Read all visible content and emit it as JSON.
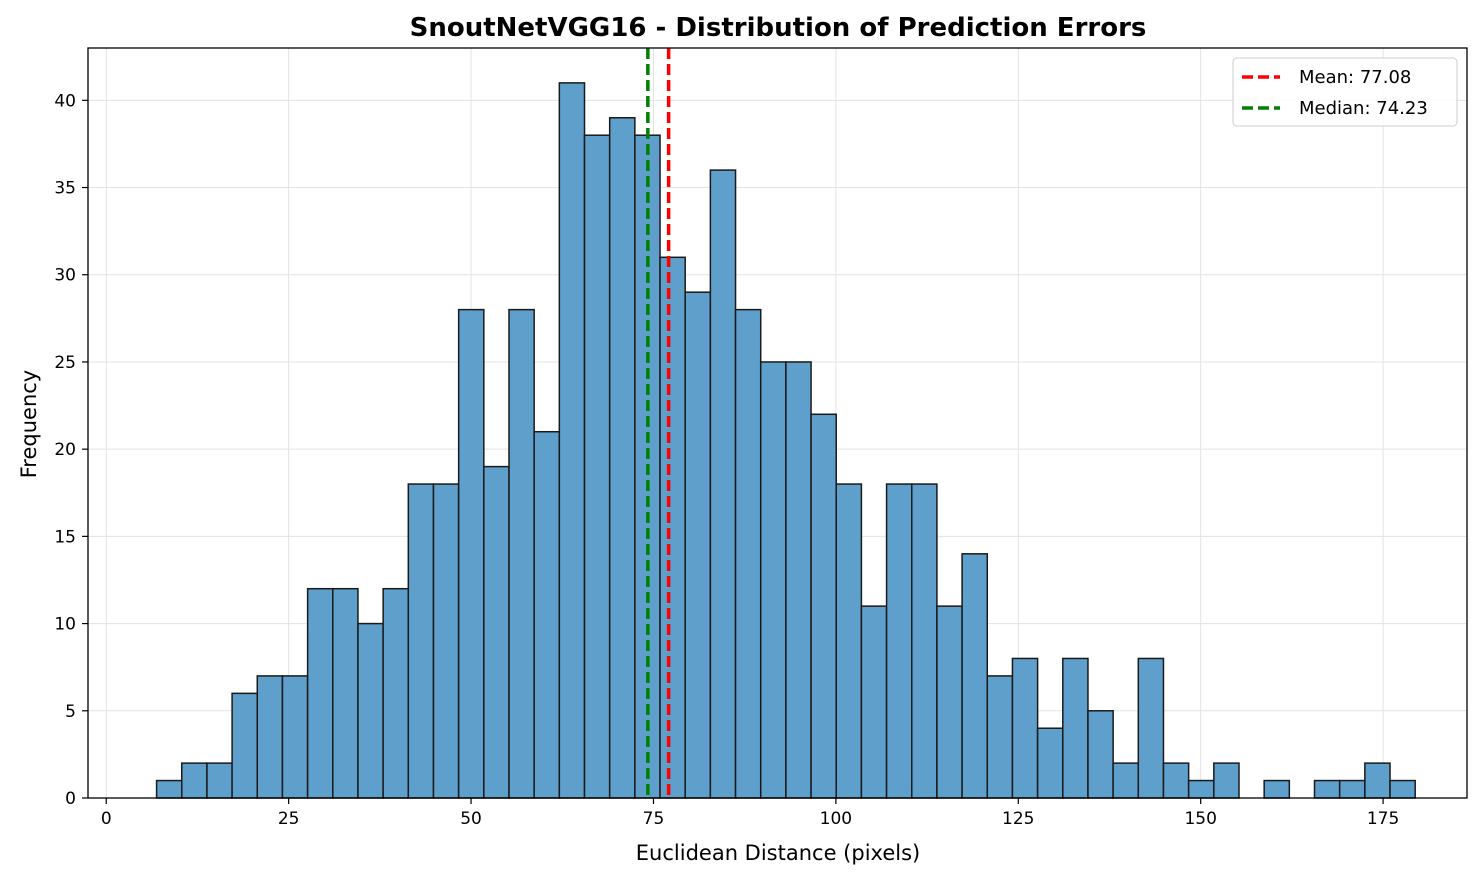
{
  "chart_data": {
    "type": "bar",
    "title": "SnoutNetVGG16 - Distribution of Prediction Errors",
    "xlabel": "Euclidean Distance (pixels)",
    "ylabel": "Frequency",
    "xlim": [
      -2.5,
      186.5
    ],
    "ylim": [
      0,
      43
    ],
    "x_ticks": [
      0,
      25,
      50,
      75,
      100,
      125,
      150,
      175
    ],
    "y_ticks": [
      0,
      5,
      10,
      15,
      20,
      25,
      30,
      35,
      40
    ],
    "grid": true,
    "legend_position": "top-right",
    "bin_start": 6.9,
    "bin_width": 3.45,
    "counts": [
      1,
      2,
      2,
      6,
      7,
      7,
      12,
      12,
      10,
      12,
      18,
      18,
      28,
      19,
      28,
      21,
      41,
      38,
      39,
      38,
      31,
      29,
      36,
      28,
      25,
      25,
      22,
      18,
      11,
      18,
      18,
      11,
      14,
      7,
      8,
      4,
      8,
      5,
      2,
      8,
      2,
      1,
      2,
      0,
      1,
      0,
      1,
      1,
      2,
      1
    ],
    "bar_color": "#5f9fcc",
    "edge_color": "#1a1a1a",
    "reference_lines": [
      {
        "label": "Mean: 77.08",
        "value": 77.08,
        "color": "#ff0000"
      },
      {
        "label": "Median: 74.23",
        "value": 74.23,
        "color": "#008000"
      }
    ]
  }
}
